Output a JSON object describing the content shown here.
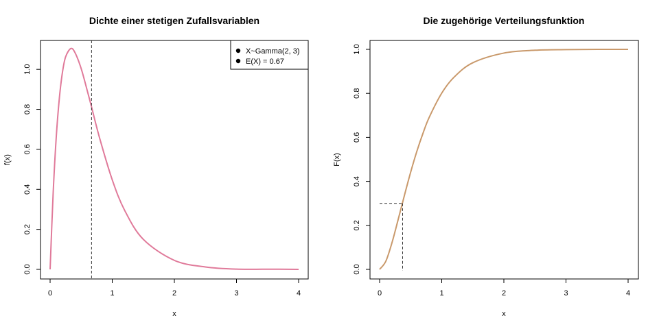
{
  "chart_data": [
    {
      "type": "line",
      "title": "Dichte einer stetigen Zufallsvariablen",
      "xlabel": "x",
      "ylabel": "f(x)",
      "xlim": [
        0,
        4
      ],
      "ylim": [
        0,
        1.1
      ],
      "x_ticks": [
        0,
        1,
        2,
        3,
        4
      ],
      "x_tick_labels": [
        "0",
        "1",
        "2",
        "3",
        "4"
      ],
      "y_ticks": [
        0,
        0.2,
        0.4,
        0.6,
        0.8,
        1.0
      ],
      "y_tick_labels": [
        "0.0",
        "0.2",
        "0.4",
        "0.6",
        "0.8",
        "1.0"
      ],
      "grid": false,
      "series": [
        {
          "color": "#E07A9A",
          "x": [
            0,
            0.05,
            0.1,
            0.15,
            0.2,
            0.25,
            0.333,
            0.4,
            0.5,
            0.6,
            0.667,
            0.8,
            1.0,
            1.2,
            1.5,
            2.0,
            2.5,
            3.0,
            3.5,
            4.0
          ],
          "y": [
            0,
            0.387,
            0.667,
            0.86,
            0.988,
            1.063,
            1.104,
            1.084,
            1.004,
            0.891,
            0.812,
            0.653,
            0.448,
            0.295,
            0.15,
            0.045,
            0.012,
            0.0011,
            0.0009,
            0.0002
          ]
        }
      ],
      "vline": {
        "x": 0.667,
        "style": "dashed",
        "color": "#333333"
      },
      "legend": {
        "position": "top-right",
        "entries": [
          "X~Gamma(2, 3)",
          "E(X) = 0.67"
        ]
      }
    },
    {
      "type": "line",
      "title": "Die zugehörige Verteilungsfunktion",
      "xlabel": "x",
      "ylabel": "F(x)",
      "xlim": [
        0,
        4
      ],
      "ylim": [
        0,
        1.0
      ],
      "x_ticks": [
        0,
        1,
        2,
        3,
        4
      ],
      "x_tick_labels": [
        "0",
        "1",
        "2",
        "3",
        "4"
      ],
      "y_ticks": [
        0,
        0.2,
        0.4,
        0.6,
        0.8,
        1.0
      ],
      "y_tick_labels": [
        "0.0",
        "0.2",
        "0.4",
        "0.6",
        "0.8",
        "1.0"
      ],
      "grid": false,
      "series": [
        {
          "color": "#C9996B",
          "x": [
            0,
            0.1,
            0.2,
            0.3,
            0.4,
            0.5,
            0.6,
            0.7,
            0.8,
            1.0,
            1.2,
            1.5,
            2.0,
            2.5,
            3.0,
            3.5,
            4.0
          ],
          "y": [
            0,
            0.037,
            0.122,
            0.228,
            0.337,
            0.442,
            0.537,
            0.62,
            0.692,
            0.801,
            0.874,
            0.939,
            0.983,
            0.996,
            0.999,
            1.0,
            1.0
          ]
        }
      ],
      "marker_lines": {
        "x": 0.37,
        "y": 0.3,
        "style": "dashed",
        "color": "#333333"
      }
    }
  ]
}
